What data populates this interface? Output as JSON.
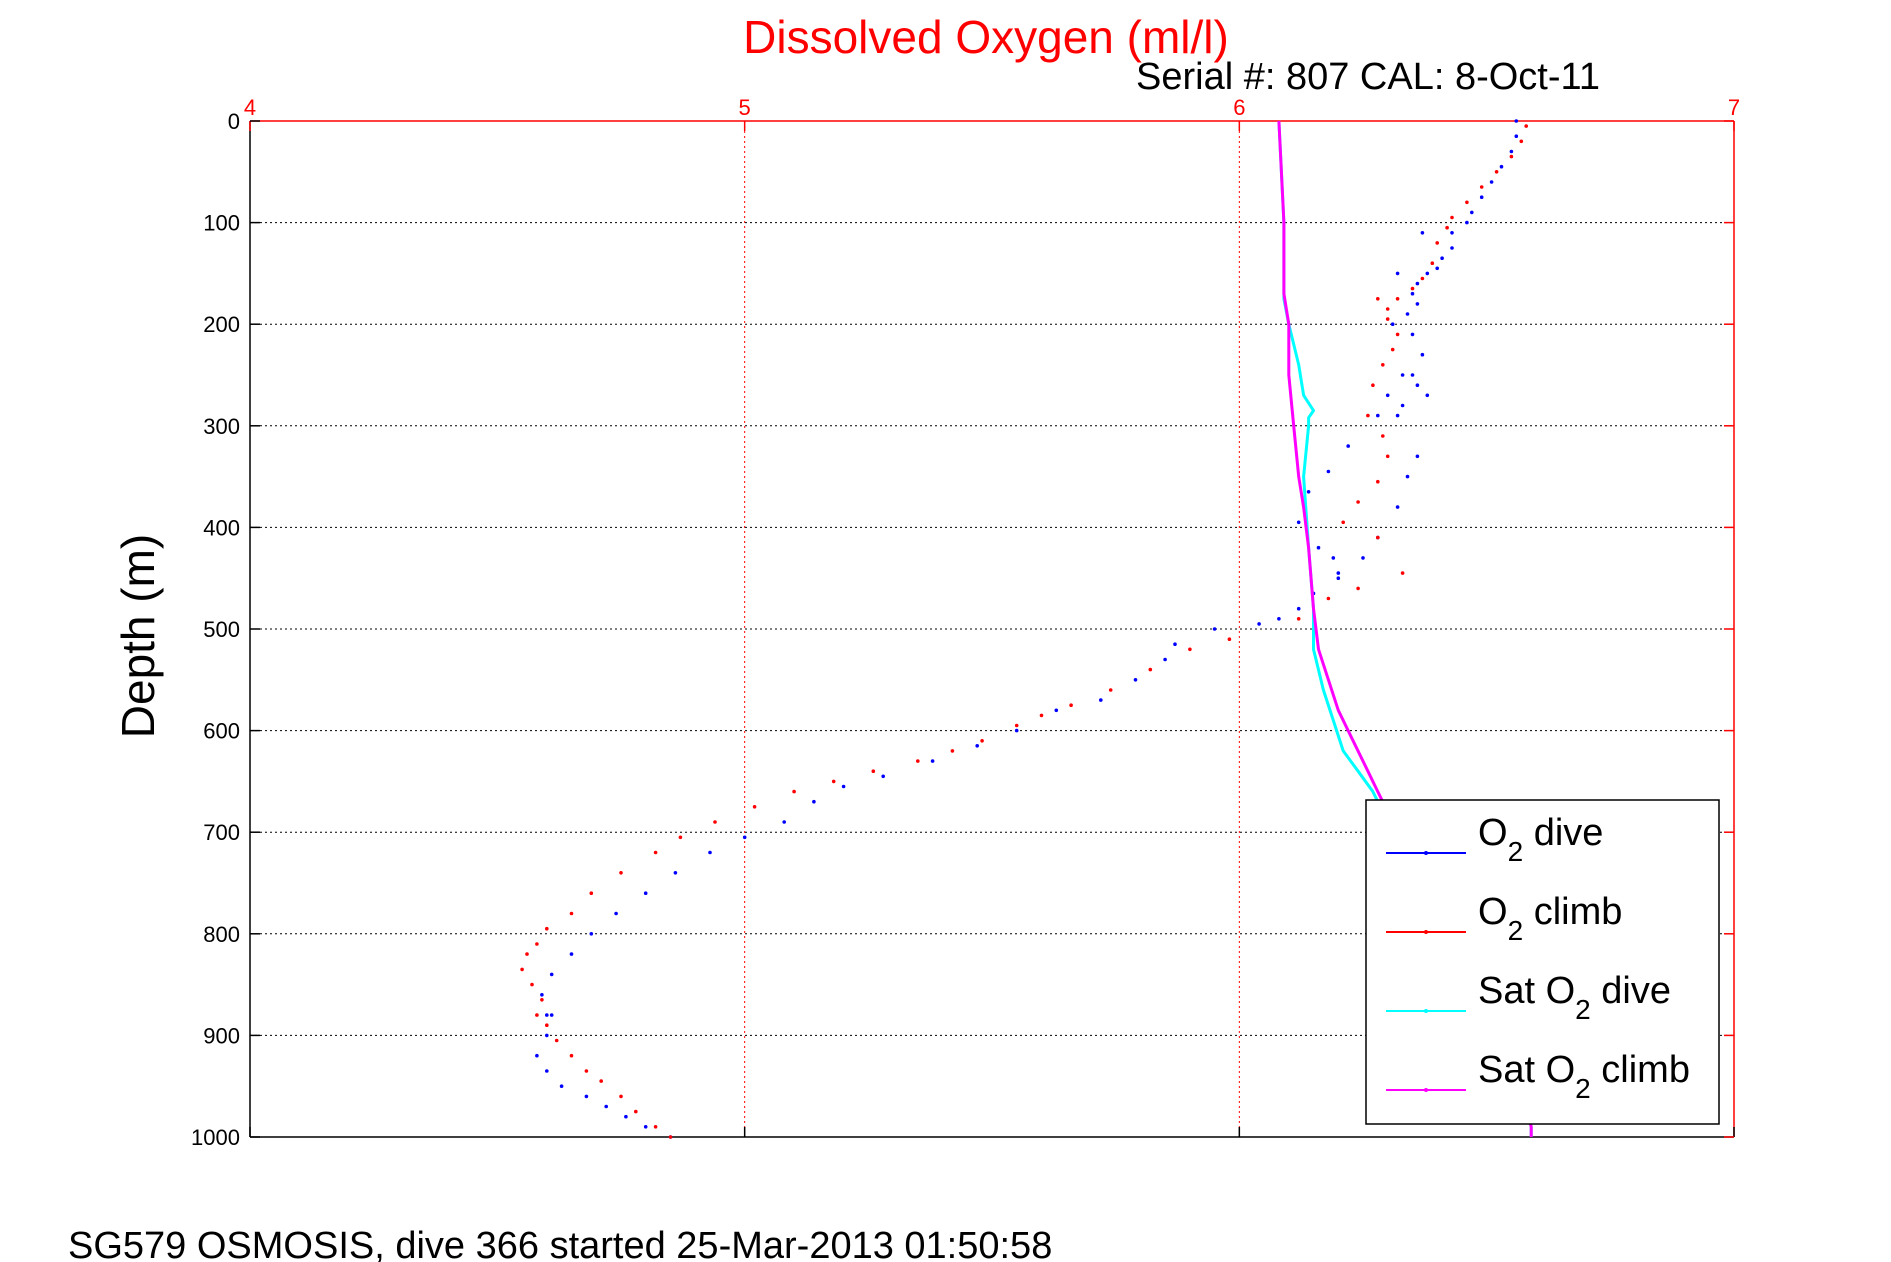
{
  "chart_data": {
    "type": "scatter",
    "title": "Dissolved Oxygen (ml/l)",
    "subtitle": "Serial #: 807  CAL: 8-Oct-11",
    "footer": "SG579 OSMOSIS, dive 366 started 25-Mar-2013 01:50:58",
    "ylabel": "Depth (m)",
    "xlim": [
      4,
      7
    ],
    "ylim": [
      0,
      1000
    ],
    "y_reversed": true,
    "x_axis_position": "top",
    "x_ticks": [
      "4",
      "5",
      "6",
      "7"
    ],
    "y_ticks": [
      "0",
      "100",
      "200",
      "300",
      "400",
      "500",
      "600",
      "700",
      "800",
      "900",
      "1000"
    ],
    "grid": true,
    "legend_position": "bottom-right",
    "colors": {
      "title": "#ff0000",
      "x_axis": "#ff0000",
      "grid_x": "#ff0000",
      "grid_y": "#000000"
    },
    "series": [
      {
        "name": "O2 dive",
        "legend_main": "O",
        "legend_sub": "2",
        "legend_after": " dive",
        "color": "#0000ff",
        "style": "dots",
        "x": [
          6.56,
          6.56,
          6.55,
          6.53,
          6.51,
          6.49,
          6.47,
          6.46,
          6.43,
          6.43,
          6.41,
          6.4,
          6.38,
          6.36,
          6.35,
          6.36,
          6.34,
          6.31,
          6.35,
          6.37,
          6.33,
          6.3,
          6.28,
          6.22,
          6.18,
          6.14,
          6.12,
          6.16,
          6.19,
          6.2,
          6.37,
          6.32,
          6.36,
          6.38,
          6.33,
          6.35,
          6.32,
          6.36,
          6.34,
          6.32,
          6.28,
          6.25,
          6.2,
          6.15,
          6.12,
          6.08,
          6.04,
          5.95,
          5.87,
          5.85,
          5.79,
          5.72,
          5.63,
          5.55,
          5.47,
          5.38,
          5.28,
          5.2,
          5.14,
          5.08,
          5.0,
          4.93,
          4.86,
          4.8,
          4.74,
          4.69,
          4.65,
          4.61,
          4.59,
          4.6,
          4.61,
          4.6,
          4.58,
          4.6,
          4.63,
          4.68,
          4.72,
          4.76,
          4.8,
          4.85
        ],
        "y": [
          0,
          15,
          30,
          45,
          60,
          75,
          90,
          100,
          110,
          125,
          135,
          145,
          150,
          160,
          170,
          180,
          190,
          200,
          210,
          230,
          250,
          270,
          290,
          320,
          345,
          365,
          395,
          420,
          430,
          445,
          110,
          150,
          260,
          270,
          280,
          250,
          290,
          330,
          350,
          380,
          410,
          430,
          450,
          465,
          480,
          490,
          495,
          500,
          515,
          530,
          550,
          570,
          580,
          600,
          615,
          630,
          645,
          655,
          670,
          690,
          705,
          720,
          740,
          760,
          780,
          800,
          820,
          840,
          860,
          880,
          880,
          900,
          920,
          935,
          950,
          960,
          970,
          980,
          990,
          1000
        ]
      },
      {
        "name": "O2 climb",
        "legend_main": "O",
        "legend_sub": "2",
        "legend_after": " climb",
        "color": "#ff0000",
        "style": "dots",
        "x": [
          6.58,
          6.57,
          6.55,
          6.52,
          6.49,
          6.46,
          6.43,
          6.42,
          6.4,
          6.39,
          6.37,
          6.35,
          6.32,
          6.3,
          6.28,
          6.3,
          6.32,
          6.31,
          6.29,
          6.27,
          6.26,
          6.29,
          6.3,
          6.28,
          6.24,
          6.21,
          6.28,
          6.33,
          6.24,
          6.18,
          6.12,
          5.98,
          5.9,
          5.82,
          5.74,
          5.66,
          5.6,
          5.55,
          5.48,
          5.42,
          5.35,
          5.26,
          5.18,
          5.1,
          5.02,
          4.94,
          4.87,
          4.82,
          4.75,
          4.69,
          4.65,
          4.6,
          4.58,
          4.56,
          4.55,
          4.57,
          4.59,
          4.58,
          4.6,
          4.62,
          4.65,
          4.68,
          4.71,
          4.75,
          4.78,
          4.82,
          4.85
        ],
        "y": [
          5,
          20,
          35,
          50,
          65,
          80,
          95,
          105,
          120,
          140,
          155,
          165,
          175,
          185,
          175,
          195,
          210,
          225,
          240,
          260,
          290,
          310,
          330,
          355,
          375,
          395,
          410,
          445,
          460,
          470,
          490,
          510,
          520,
          540,
          560,
          575,
          585,
          595,
          610,
          620,
          630,
          640,
          650,
          660,
          675,
          690,
          705,
          720,
          740,
          760,
          780,
          795,
          810,
          820,
          835,
          850,
          865,
          880,
          890,
          905,
          920,
          935,
          945,
          960,
          975,
          990,
          1000
        ]
      },
      {
        "name": "Sat O2 dive",
        "legend_main": "Sat O",
        "legend_sub": "2",
        "legend_after": " dive",
        "color": "#00ffff",
        "style": "line",
        "x": [
          6.08,
          6.09,
          6.09,
          6.1,
          6.12,
          6.13,
          6.15,
          6.14,
          6.14,
          6.13,
          6.14,
          6.15,
          6.15,
          6.17,
          6.19,
          6.21,
          6.24,
          6.27,
          6.3,
          6.35,
          6.4,
          6.45,
          6.5,
          6.53,
          6.56,
          6.58,
          6.59,
          6.59
        ],
        "y": [
          0,
          100,
          175,
          200,
          240,
          270,
          285,
          292,
          300,
          350,
          420,
          480,
          520,
          560,
          590,
          620,
          640,
          660,
          690,
          730,
          780,
          820,
          860,
          900,
          940,
          970,
          990,
          1000
        ]
      },
      {
        "name": "Sat O2 climb",
        "legend_main": "Sat O",
        "legend_sub": "2",
        "legend_after": " climb",
        "color": "#ff00ff",
        "style": "line",
        "x": [
          6.08,
          6.09,
          6.09,
          6.1,
          6.1,
          6.11,
          6.12,
          6.13,
          6.14,
          6.15,
          6.16,
          6.18,
          6.2,
          6.23,
          6.26,
          6.28,
          6.3,
          6.35,
          6.4,
          6.45,
          6.5,
          6.53,
          6.56,
          6.58,
          6.59,
          6.59
        ],
        "y": [
          0,
          100,
          170,
          200,
          250,
          300,
          350,
          380,
          420,
          480,
          520,
          550,
          580,
          610,
          640,
          660,
          680,
          720,
          770,
          820,
          860,
          900,
          940,
          970,
          990,
          1000
        ]
      }
    ]
  }
}
